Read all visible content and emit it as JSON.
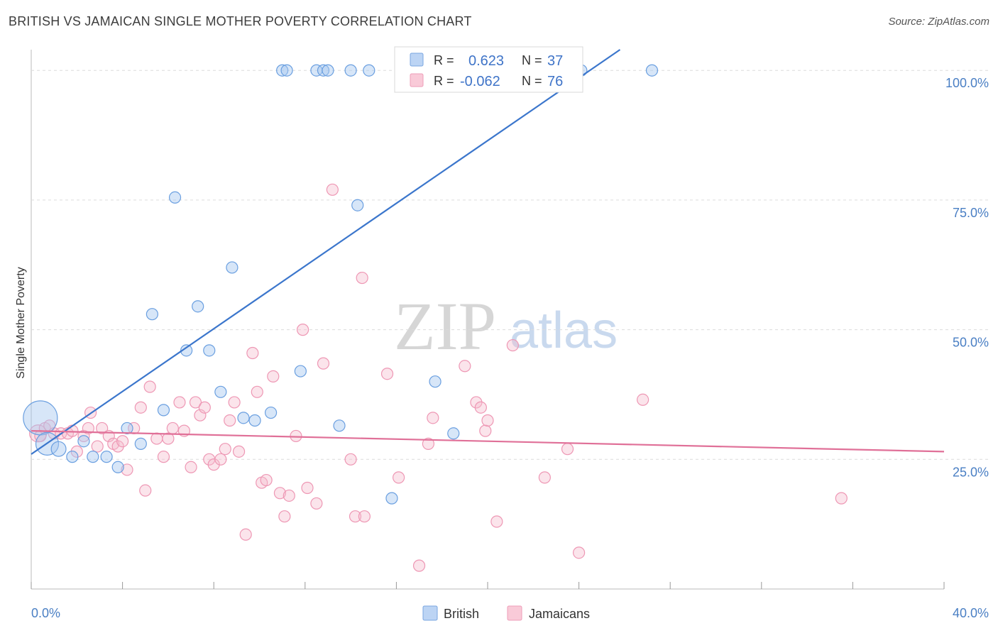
{
  "title": "BRITISH VS JAMAICAN SINGLE MOTHER POVERTY CORRELATION CHART",
  "source": "Source: ZipAtlas.com",
  "watermark": {
    "zip": "ZIP",
    "atlas": "atlas"
  },
  "colors": {
    "british": "#6a9fe0",
    "british_line": "#3b76cc",
    "jamaicans": "#f0a0bb",
    "jamaicans_line": "#e07098",
    "axis_label": "#4a7fc4"
  },
  "legend_top": {
    "british": {
      "r_label": "R =",
      "r_value": "0.623",
      "n_label": "N =",
      "n_value": "37"
    },
    "jamaicans": {
      "r_label": "R =",
      "r_value": "-0.062",
      "n_label": "N =",
      "n_value": "76"
    }
  },
  "chart_data": {
    "type": "scatter",
    "title": "BRITISH VS JAMAICAN SINGLE MOTHER POVERTY CORRELATION CHART",
    "xlabel": "",
    "ylabel": "Single Mother Poverty",
    "xlim": [
      0,
      40
    ],
    "ylim": [
      0,
      104
    ],
    "x_tick_labels": [
      "0.0%",
      "40.0%"
    ],
    "y_ticks": [
      25,
      50,
      75,
      100
    ],
    "y_tick_labels": [
      "25.0%",
      "50.0%",
      "75.0%",
      "100.0%"
    ],
    "grid": "horizontal-dashed",
    "legend_bottom": [
      "British",
      "Jamaicans"
    ],
    "series": [
      {
        "name": "British",
        "points": [
          [
            0.4,
            33.0,
            3
          ],
          [
            0.7,
            28.0,
            2
          ],
          [
            1.2,
            27.0,
            1.3
          ],
          [
            1.8,
            25.5,
            1
          ],
          [
            2.3,
            28.5,
            1
          ],
          [
            2.7,
            25.5,
            1
          ],
          [
            3.3,
            25.5,
            1
          ],
          [
            3.8,
            23.5,
            1
          ],
          [
            4.2,
            31.0,
            1
          ],
          [
            4.8,
            28.0,
            1
          ],
          [
            5.3,
            53.0,
            1
          ],
          [
            5.8,
            34.5,
            1
          ],
          [
            6.3,
            75.5,
            1
          ],
          [
            6.8,
            46.0,
            1
          ],
          [
            7.3,
            54.5,
            1
          ],
          [
            7.8,
            46.0,
            1
          ],
          [
            8.3,
            38.0,
            1
          ],
          [
            8.8,
            62.0,
            1
          ],
          [
            9.3,
            33.0,
            1
          ],
          [
            9.8,
            32.5,
            1
          ],
          [
            10.5,
            34.0,
            1
          ],
          [
            11.0,
            100,
            1
          ],
          [
            11.2,
            100,
            1
          ],
          [
            11.8,
            42.0,
            1
          ],
          [
            12.5,
            100,
            1
          ],
          [
            12.8,
            100,
            1
          ],
          [
            13.0,
            100,
            1
          ],
          [
            13.5,
            31.5,
            1
          ],
          [
            14.0,
            100,
            1
          ],
          [
            14.3,
            74.0,
            1
          ],
          [
            14.8,
            100,
            1
          ],
          [
            15.8,
            17.5,
            1
          ],
          [
            17.5,
            100,
            1
          ],
          [
            17.7,
            40.0,
            1
          ],
          [
            18.5,
            30.0,
            1
          ],
          [
            24.1,
            100,
            1
          ],
          [
            27.2,
            100,
            1
          ]
        ],
        "trend": [
          [
            0,
            26.0
          ],
          [
            25.8,
            104.0
          ]
        ]
      },
      {
        "name": "Jamaicans",
        "points": [
          [
            0.3,
            30.0,
            1.5
          ],
          [
            0.4,
            29.5,
            1
          ],
          [
            0.6,
            31.0,
            1
          ],
          [
            0.8,
            31.5,
            1
          ],
          [
            1.0,
            30.0,
            1
          ],
          [
            1.3,
            30.0,
            1
          ],
          [
            1.6,
            30.0,
            1
          ],
          [
            1.8,
            30.5,
            1
          ],
          [
            2.0,
            26.5,
            1
          ],
          [
            2.3,
            29.5,
            1
          ],
          [
            2.5,
            31.0,
            1
          ],
          [
            2.6,
            34.0,
            1
          ],
          [
            2.9,
            27.5,
            1
          ],
          [
            3.1,
            31.0,
            1
          ],
          [
            3.4,
            29.5,
            1
          ],
          [
            3.6,
            28.0,
            1
          ],
          [
            3.8,
            27.5,
            1
          ],
          [
            4.0,
            28.5,
            1
          ],
          [
            4.2,
            23.0,
            1
          ],
          [
            4.5,
            31.0,
            1
          ],
          [
            4.8,
            35.0,
            1
          ],
          [
            5.0,
            19.0,
            1
          ],
          [
            5.2,
            39.0,
            1
          ],
          [
            5.5,
            29.0,
            1
          ],
          [
            5.8,
            25.5,
            1
          ],
          [
            6.0,
            29.0,
            1
          ],
          [
            6.2,
            31.0,
            1
          ],
          [
            6.5,
            36.0,
            1
          ],
          [
            6.7,
            30.5,
            1
          ],
          [
            7.0,
            23.5,
            1
          ],
          [
            7.2,
            36.0,
            1
          ],
          [
            7.4,
            33.5,
            1
          ],
          [
            7.6,
            35.0,
            1
          ],
          [
            7.8,
            25.0,
            1
          ],
          [
            8.0,
            24.0,
            1
          ],
          [
            8.3,
            25.0,
            1
          ],
          [
            8.5,
            27.0,
            1
          ],
          [
            8.7,
            32.5,
            1
          ],
          [
            8.9,
            36.0,
            1
          ],
          [
            9.1,
            26.5,
            1
          ],
          [
            9.4,
            10.5,
            1
          ],
          [
            9.7,
            45.5,
            1
          ],
          [
            9.9,
            38.0,
            1
          ],
          [
            10.1,
            20.5,
            1
          ],
          [
            10.3,
            21.0,
            1
          ],
          [
            10.6,
            41.0,
            1
          ],
          [
            10.9,
            18.5,
            1
          ],
          [
            11.1,
            14.0,
            1
          ],
          [
            11.3,
            18.0,
            1
          ],
          [
            11.6,
            29.5,
            1
          ],
          [
            11.9,
            50.0,
            1
          ],
          [
            12.1,
            19.5,
            1
          ],
          [
            12.5,
            16.5,
            1
          ],
          [
            12.8,
            43.5,
            1
          ],
          [
            13.2,
            77.0,
            1
          ],
          [
            14.0,
            25.0,
            1
          ],
          [
            14.2,
            14.0,
            1
          ],
          [
            14.5,
            60.0,
            1
          ],
          [
            14.6,
            14.0,
            1
          ],
          [
            15.6,
            41.5,
            1
          ],
          [
            16.1,
            21.5,
            1
          ],
          [
            17.0,
            4.5,
            1
          ],
          [
            17.4,
            28.0,
            1
          ],
          [
            17.6,
            33.0,
            1
          ],
          [
            19.0,
            43.0,
            1
          ],
          [
            19.5,
            36.0,
            1
          ],
          [
            19.7,
            35.0,
            1
          ],
          [
            19.9,
            30.5,
            1
          ],
          [
            20.0,
            32.5,
            1
          ],
          [
            20.4,
            13.0,
            1
          ],
          [
            21.1,
            47.0,
            1
          ],
          [
            22.5,
            21.5,
            1
          ],
          [
            23.5,
            27.0,
            1
          ],
          [
            24.0,
            7.0,
            1
          ],
          [
            26.8,
            36.5,
            1
          ],
          [
            35.5,
            17.5,
            1
          ]
        ],
        "trend": [
          [
            0,
            30.5
          ],
          [
            40,
            26.5
          ]
        ]
      }
    ]
  }
}
